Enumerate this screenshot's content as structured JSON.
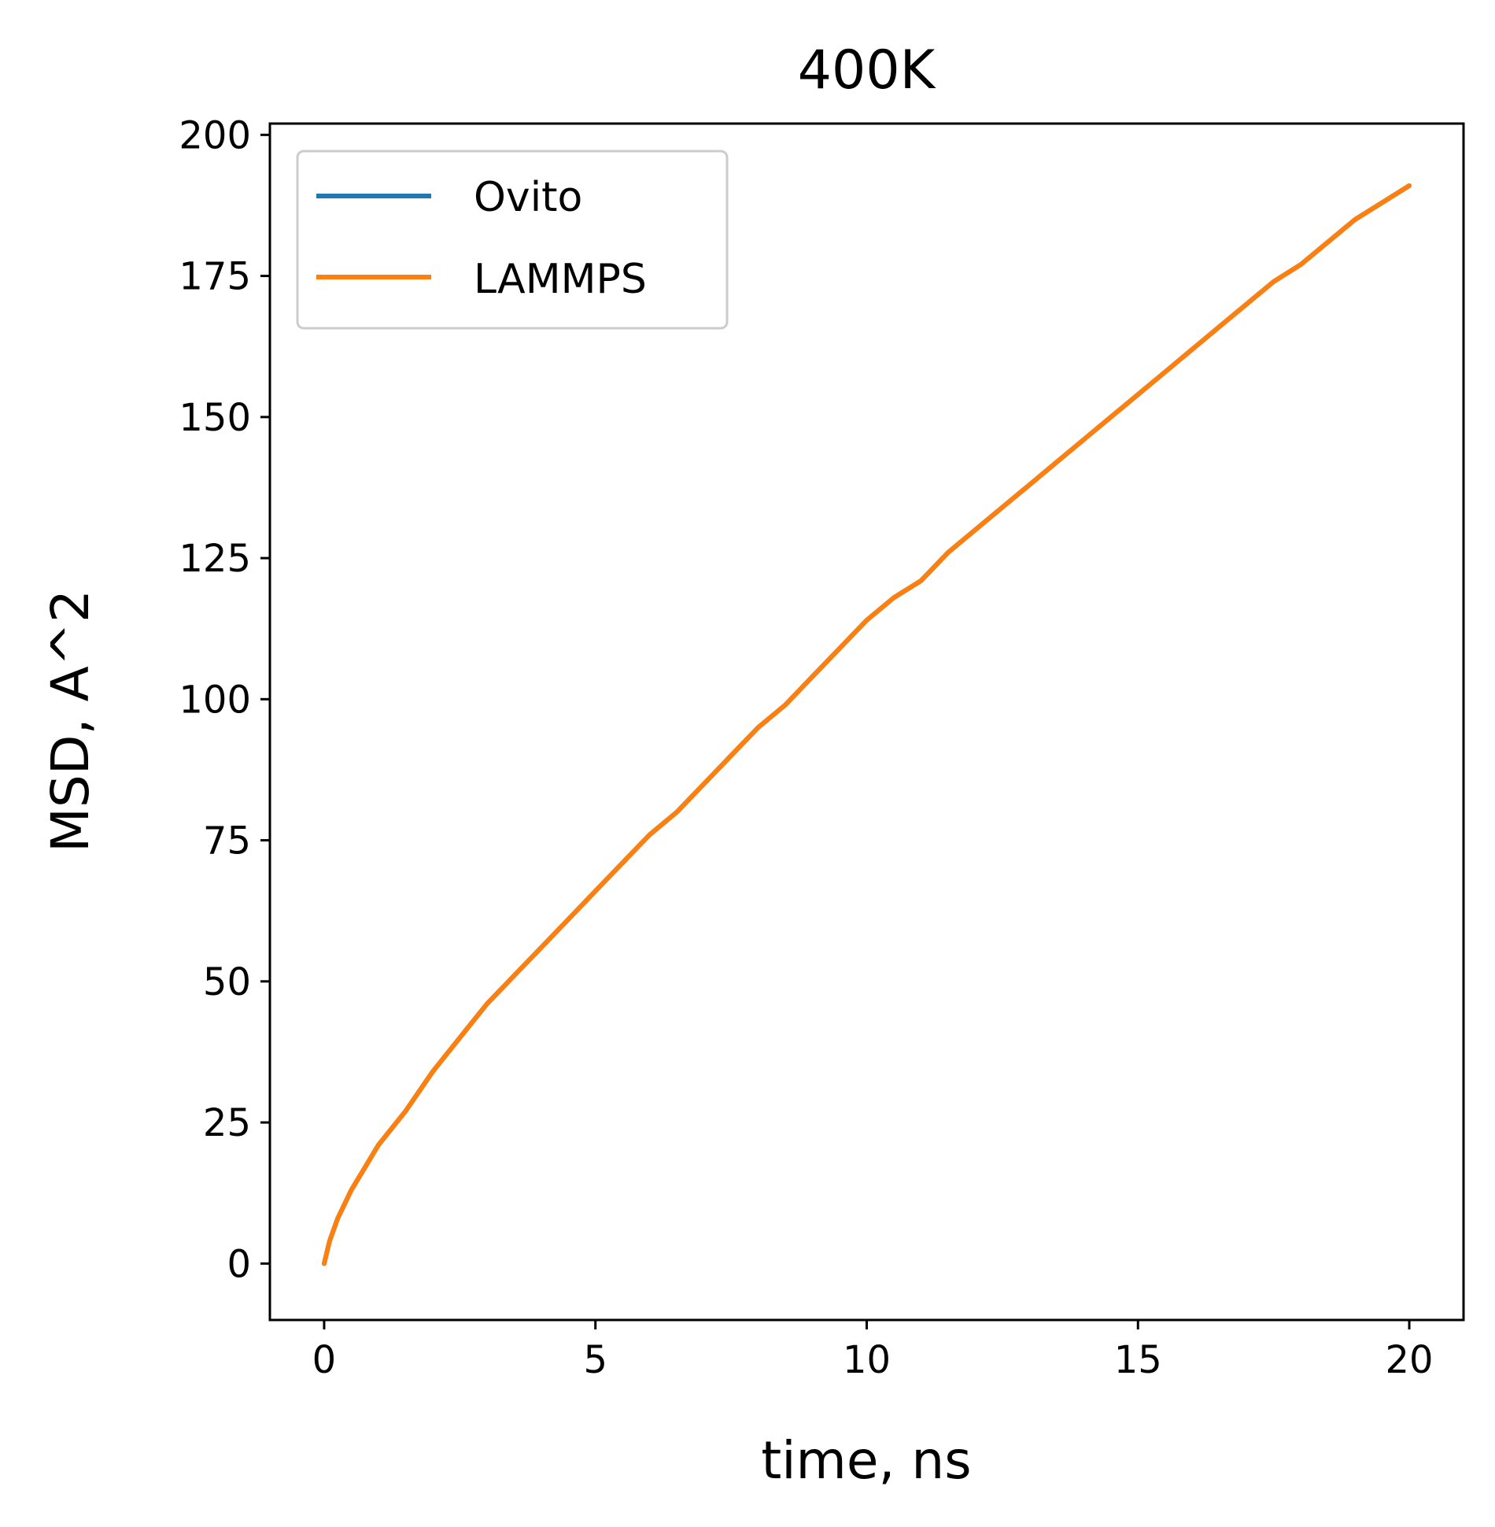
{
  "chart_data": {
    "type": "line",
    "title": "400K",
    "xlabel": "time, ns",
    "ylabel": "MSD, A^2",
    "xlim": [
      -1,
      21
    ],
    "ylim": [
      -10,
      202
    ],
    "xticks": [
      0,
      5,
      10,
      15,
      20
    ],
    "yticks": [
      0,
      25,
      50,
      75,
      100,
      125,
      150,
      175,
      200
    ],
    "legend_position": "upper-left",
    "grid": false,
    "series": [
      {
        "name": "Ovito",
        "color": "#1f77b4",
        "x": [
          0,
          0.1,
          0.25,
          0.5,
          0.75,
          1,
          1.5,
          2,
          2.5,
          3,
          3.5,
          4,
          4.5,
          5,
          5.5,
          6,
          6.5,
          7,
          7.5,
          8,
          8.5,
          9,
          9.5,
          10,
          10.5,
          11,
          11.5,
          12,
          12.5,
          13,
          13.5,
          14,
          14.5,
          15,
          15.5,
          16,
          16.5,
          17,
          17.5,
          18,
          18.5,
          19,
          19.5,
          20
        ],
        "y": [
          0,
          4,
          8,
          13,
          17,
          21,
          27,
          34,
          40,
          46,
          51,
          56,
          61,
          66,
          71,
          76,
          80,
          85,
          90,
          95,
          99,
          104,
          109,
          114,
          118,
          121,
          126,
          130,
          134,
          138,
          142,
          146,
          150,
          154,
          158,
          162,
          166,
          170,
          174,
          177,
          181,
          185,
          188,
          191
        ]
      },
      {
        "name": "LAMMPS",
        "color": "#ff7f0e",
        "x": [
          0,
          0.1,
          0.25,
          0.5,
          0.75,
          1,
          1.5,
          2,
          2.5,
          3,
          3.5,
          4,
          4.5,
          5,
          5.5,
          6,
          6.5,
          7,
          7.5,
          8,
          8.5,
          9,
          9.5,
          10,
          10.5,
          11,
          11.5,
          12,
          12.5,
          13,
          13.5,
          14,
          14.5,
          15,
          15.5,
          16,
          16.5,
          17,
          17.5,
          18,
          18.5,
          19,
          19.5,
          20
        ],
        "y": [
          0,
          4,
          8,
          13,
          17,
          21,
          27,
          34,
          40,
          46,
          51,
          56,
          61,
          66,
          71,
          76,
          80,
          85,
          90,
          95,
          99,
          104,
          109,
          114,
          118,
          121,
          126,
          130,
          134,
          138,
          142,
          146,
          150,
          154,
          158,
          162,
          166,
          170,
          174,
          177,
          181,
          185,
          188,
          191
        ]
      }
    ]
  }
}
